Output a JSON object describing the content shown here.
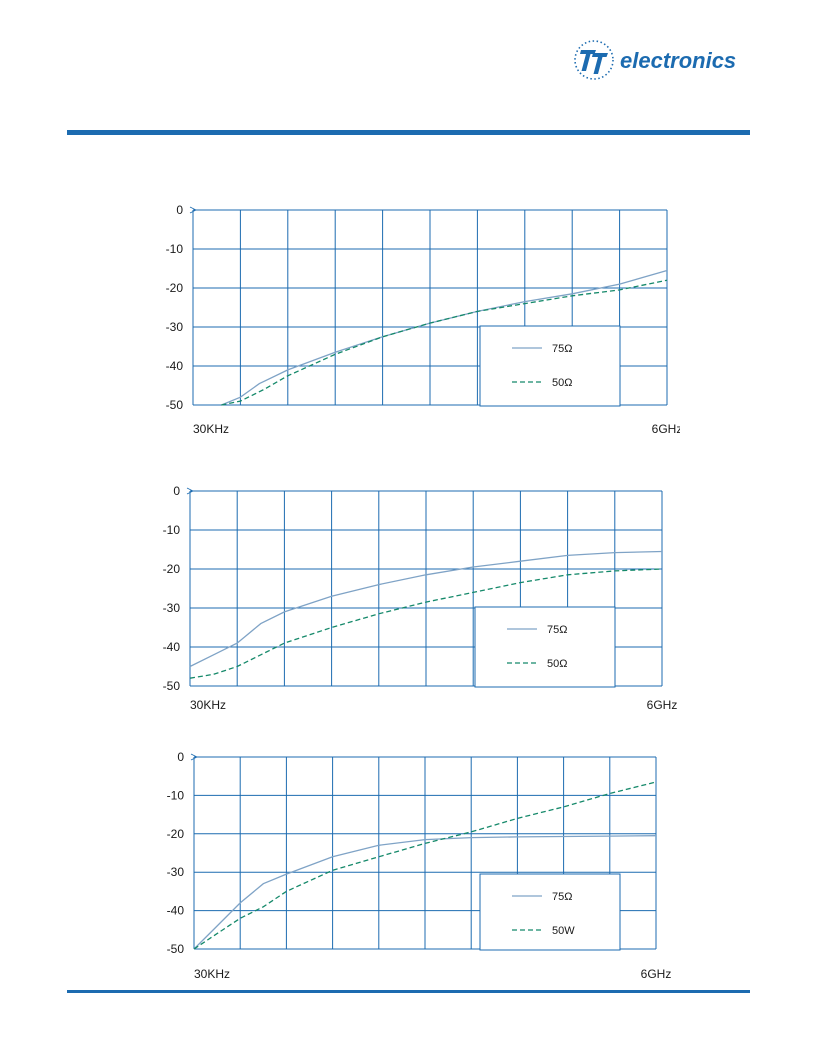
{
  "brand": {
    "logo_text": "electronics",
    "accent": "#1c6bb0"
  },
  "colors": {
    "grid": "#1c6bb0",
    "series_75": "#7fa3c6",
    "series_50": "#15896a"
  },
  "chart_data": [
    {
      "type": "line",
      "yticks": [
        "0",
        "-10",
        "-20",
        "-30",
        "-40",
        "-50"
      ],
      "ylim": [
        -50,
        0
      ],
      "xlim": [
        0,
        10
      ],
      "x_start_label": "30KHz",
      "x_end_label": "6GHz",
      "legend_position": "lower-right",
      "grid": true,
      "series": [
        {
          "name": "75Ω",
          "style": "solid",
          "x": [
            0.6,
            1.0,
            1.4,
            2.0,
            3.0,
            4.0,
            5.0,
            6.0,
            7.0,
            8.0,
            9.0,
            10.0
          ],
          "y": [
            -50,
            -48,
            -44.5,
            -41,
            -36.5,
            -32.5,
            -29,
            -26,
            -23.5,
            -21.5,
            -19,
            -15.5
          ]
        },
        {
          "name": "50Ω",
          "style": "dashed",
          "x": [
            0.6,
            1.0,
            1.5,
            2.0,
            3.0,
            4.0,
            5.0,
            6.0,
            7.0,
            8.0,
            9.0,
            10.0
          ],
          "y": [
            -50,
            -49,
            -46,
            -42.5,
            -37,
            -32.5,
            -29,
            -26,
            -24,
            -22,
            -20.5,
            -18
          ]
        }
      ]
    },
    {
      "type": "line",
      "yticks": [
        "0",
        "-10",
        "-20",
        "-30",
        "-40",
        "-50"
      ],
      "ylim": [
        -50,
        0
      ],
      "xlim": [
        0,
        10
      ],
      "x_start_label": "30KHz",
      "x_end_label": "6GHz",
      "legend_position": "lower-right",
      "grid": true,
      "series": [
        {
          "name": "75Ω",
          "style": "solid",
          "x": [
            0,
            0.5,
            1.0,
            1.5,
            2.0,
            3.0,
            4.0,
            5.0,
            6.0,
            7.0,
            8.0,
            9.0,
            10.0
          ],
          "y": [
            -45,
            -42,
            -39,
            -34,
            -31,
            -27,
            -24,
            -21.5,
            -19.5,
            -18,
            -16.5,
            -15.8,
            -15.5
          ]
        },
        {
          "name": "50Ω",
          "style": "dashed",
          "x": [
            0,
            0.5,
            1.0,
            1.5,
            2.0,
            3.0,
            4.0,
            5.0,
            6.0,
            7.0,
            8.0,
            9.0,
            10.0
          ],
          "y": [
            -48,
            -47,
            -45,
            -42,
            -39,
            -35,
            -31.5,
            -28.5,
            -26,
            -23.5,
            -21.5,
            -20.5,
            -20
          ]
        }
      ]
    },
    {
      "type": "line",
      "yticks": [
        "0",
        "-10",
        "-20",
        "-30",
        "-40",
        "-50"
      ],
      "ylim": [
        -50,
        0
      ],
      "xlim": [
        0,
        10
      ],
      "x_start_label": "30KHz",
      "x_end_label": "6GHz",
      "legend_position": "lower-right",
      "grid": true,
      "series": [
        {
          "name": "75Ω",
          "style": "solid",
          "x": [
            0,
            0.5,
            1.0,
            1.5,
            2.0,
            3.0,
            4.0,
            5.0,
            6.0,
            7.0,
            8.0,
            9.0,
            10.0
          ],
          "y": [
            -50,
            -44,
            -38,
            -33,
            -30.5,
            -26,
            -23,
            -21.5,
            -21,
            -20.8,
            -20.7,
            -20.6,
            -20.5
          ]
        },
        {
          "name": "50W",
          "style": "dashed",
          "x": [
            0,
            0.5,
            1.0,
            1.5,
            2.0,
            3.0,
            4.0,
            5.0,
            6.0,
            7.0,
            8.0,
            9.0,
            10.0
          ],
          "y": [
            -50,
            -46,
            -42,
            -39,
            -35,
            -29.5,
            -26,
            -22.5,
            -19.5,
            -16,
            -13,
            -9.5,
            -6.5
          ]
        }
      ]
    }
  ]
}
